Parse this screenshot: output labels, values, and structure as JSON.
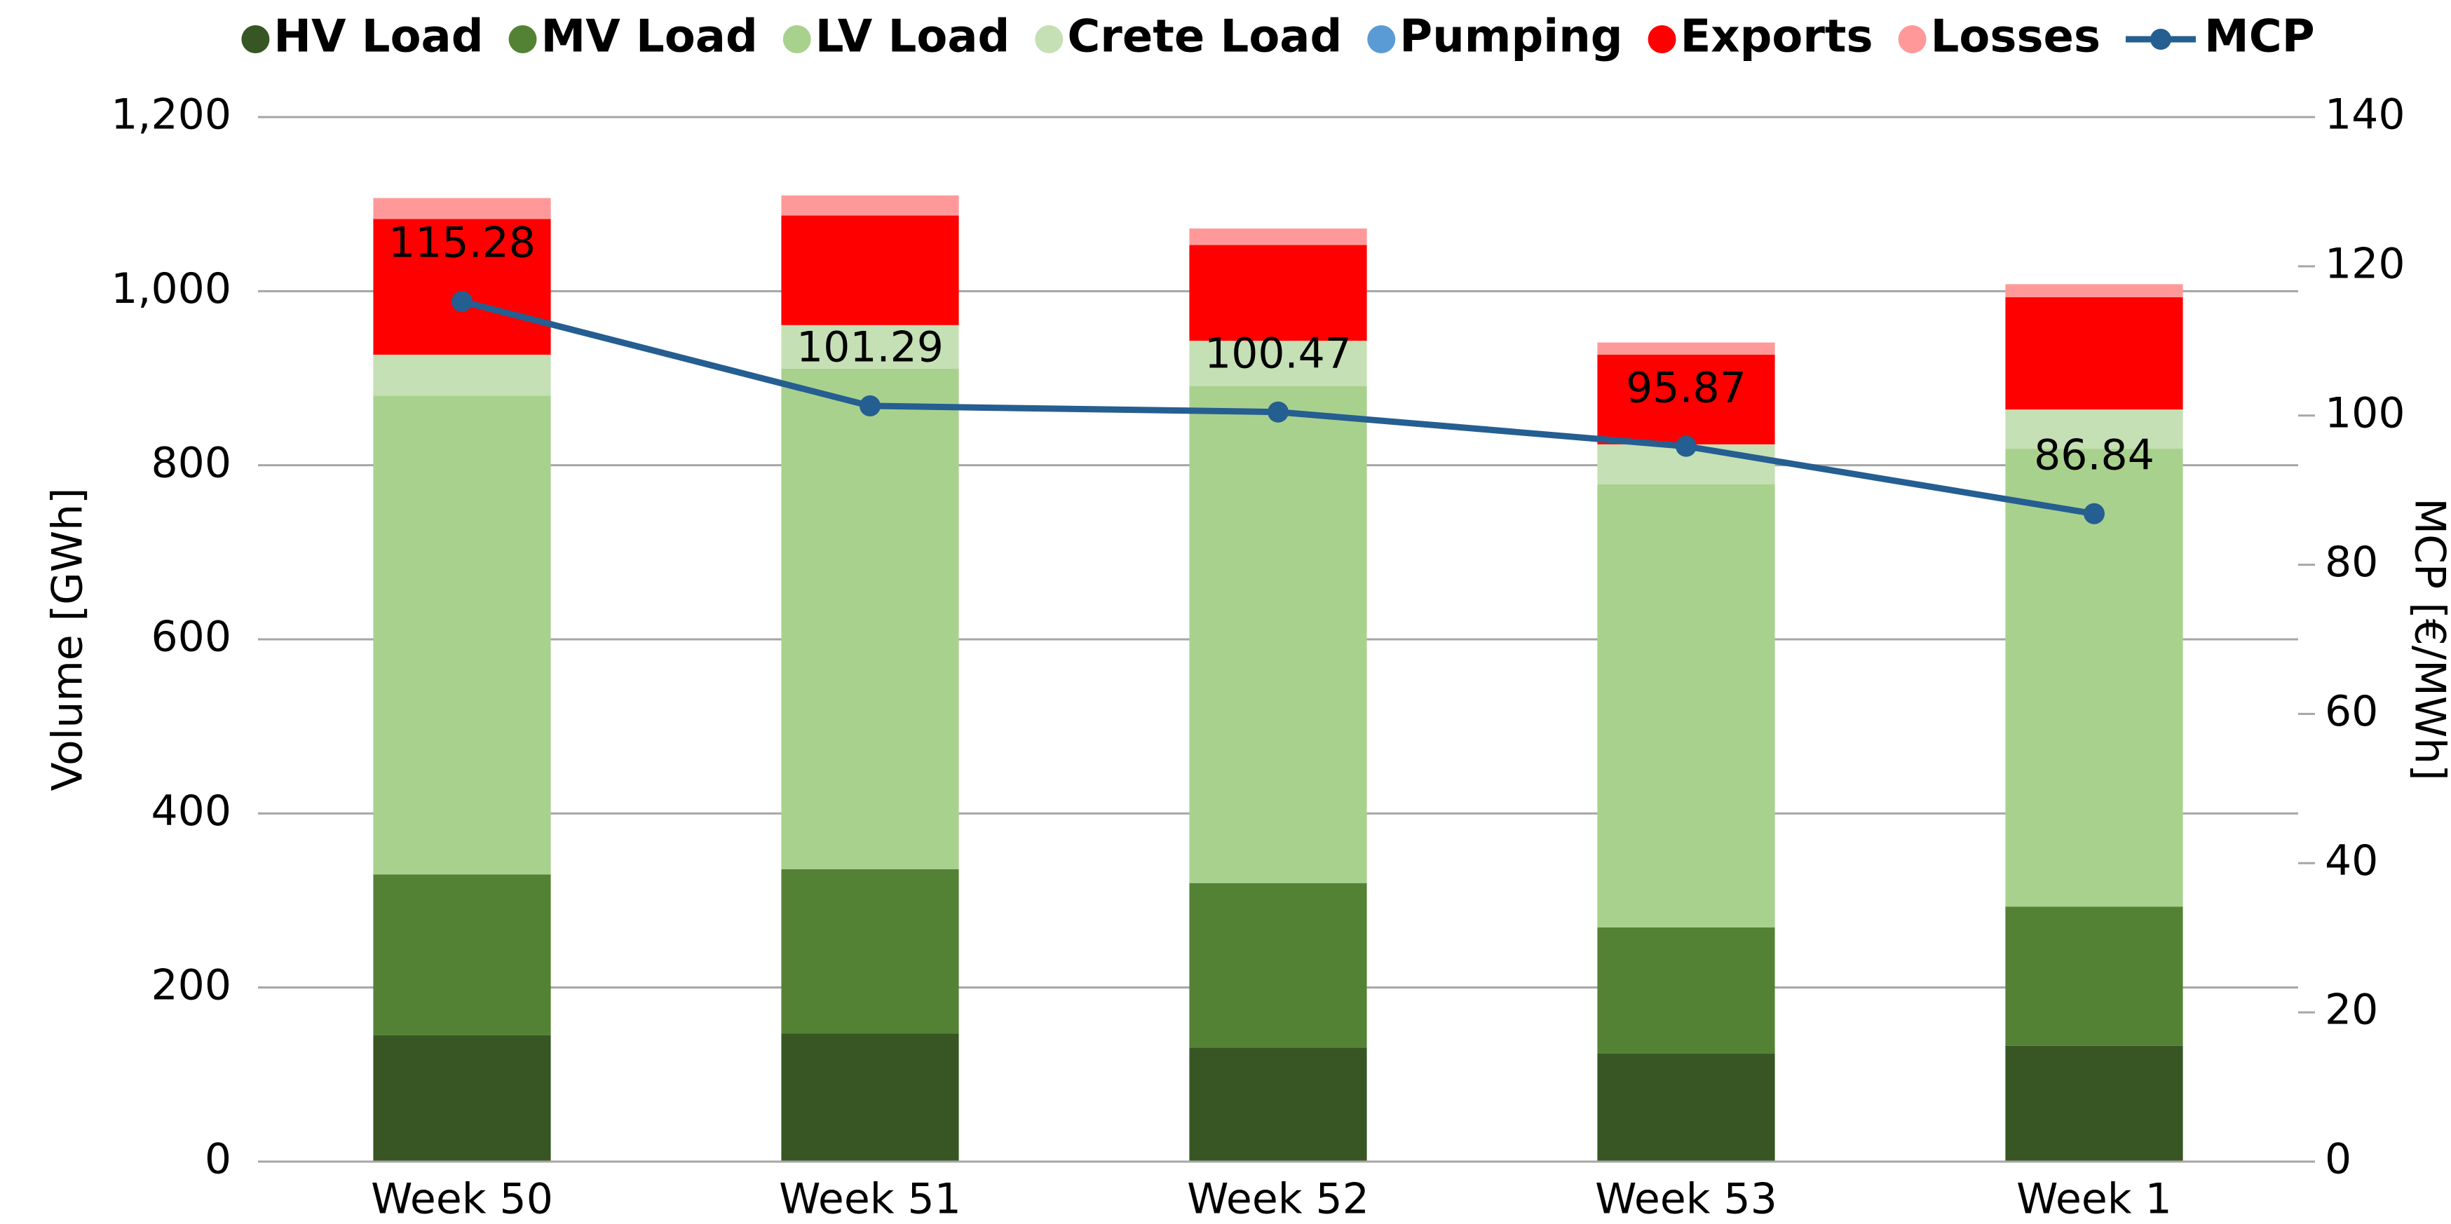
{
  "chart_data": {
    "type": "bar",
    "stacked": true,
    "categories": [
      "Week 50",
      "Week 51",
      "Week 52",
      "Week 53",
      "Week 1"
    ],
    "ylabel": "Volume [GWh]",
    "y2label": "MCP [€/MWh]",
    "ylim": [
      0,
      1200
    ],
    "yticks": [
      0,
      200,
      400,
      600,
      800,
      {
        "value": 1000,
        "label": "1,000"
      },
      {
        "value": 1200,
        "label": "1,200"
      }
    ],
    "y2lim": [
      0,
      140
    ],
    "y2ticks": [
      0,
      20,
      40,
      60,
      80,
      100,
      120,
      140
    ],
    "grid": true,
    "legend": "top",
    "series": [
      {
        "name": "HV Load",
        "color": "#375623",
        "values": [
          145,
          147,
          131,
          124,
          133
        ]
      },
      {
        "name": "MV Load",
        "color": "#548235",
        "values": [
          185,
          189,
          189,
          145,
          160
        ]
      },
      {
        "name": "LV Load",
        "color": "#a9d18e",
        "values": [
          550,
          575,
          571,
          509,
          526
        ]
      },
      {
        "name": "Crete Load",
        "color": "#c5e0b4",
        "values": [
          47,
          50,
          52,
          46,
          45
        ]
      },
      {
        "name": "Pumping",
        "color": "#5b9bd5",
        "values": [
          0,
          0,
          0,
          0,
          0
        ]
      },
      {
        "name": "Exports",
        "color": "#ff0000",
        "values": [
          156,
          126,
          110,
          103,
          129
        ]
      },
      {
        "name": "Losses",
        "color": "#ff9999",
        "values": [
          24,
          23,
          19,
          14,
          15
        ]
      },
      {
        "name": "MCP",
        "type": "line",
        "axis": "y2",
        "color": "#255e91",
        "values": [
          115.28,
          101.29,
          100.47,
          95.87,
          86.84
        ]
      }
    ]
  }
}
